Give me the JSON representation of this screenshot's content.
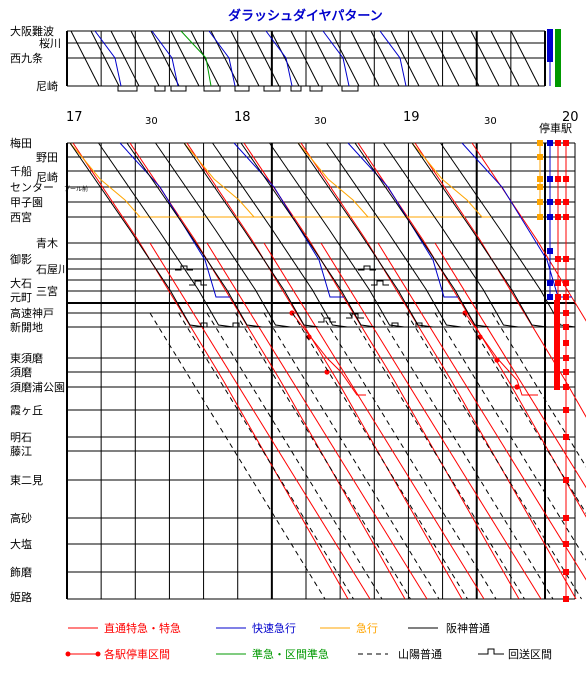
{
  "title": "ダラッシュダイヤパターン",
  "top_stations": [
    "大阪難波",
    "桜川",
    "西九条",
    "尼崎"
  ],
  "main_stations": [
    "梅田",
    "野田",
    "千船",
    "尼崎",
    "センター",
    "プール前",
    "甲子園",
    "西宮",
    "青木",
    "御影",
    "石屋川",
    "大石",
    "三宮",
    "元町",
    "高速神戸",
    "新開地",
    "東須磨",
    "須磨",
    "須磨浦公園",
    "霞ヶ丘",
    "明石",
    "藤江",
    "東二見",
    "高砂",
    "大塩",
    "飾磨",
    "姫路"
  ],
  "time_axis": {
    "hours": [
      "17",
      "18",
      "19",
      "20"
    ],
    "minutes": [
      "30",
      "30",
      "30"
    ]
  },
  "stop_column_label": "停車駅",
  "legend": {
    "limited_express": "直通特急・特急",
    "rapid_express": "快速急行",
    "express": "急行",
    "hanshin_local": "阪神普通",
    "local_stop_section": "各駅停車区間",
    "semi_express": "準急・区間準急",
    "sanyo_local": "山陽普通",
    "deadhead": "回送区間"
  },
  "colors": {
    "limited_express": "#ff0000",
    "rapid_express": "#0000cc",
    "express": "#ffa500",
    "semi_express": "#009900",
    "local": "#000000",
    "grid": "#000000",
    "title": "#0000cc"
  }
}
